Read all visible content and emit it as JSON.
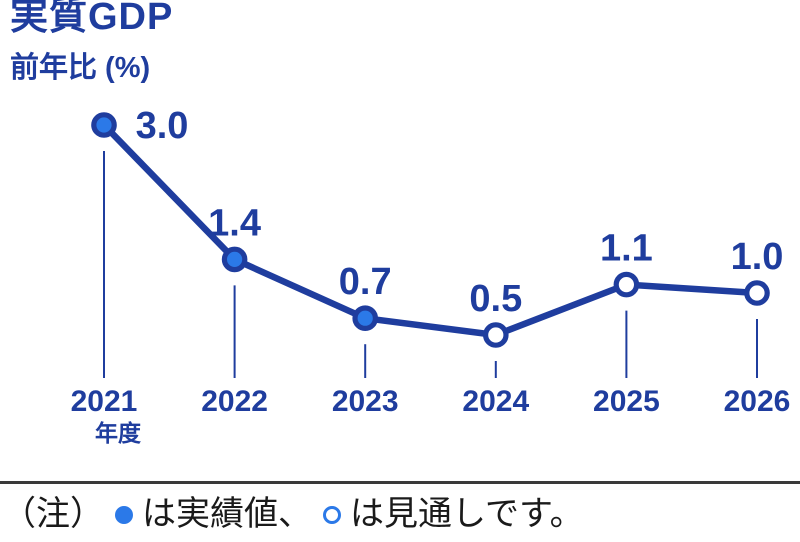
{
  "title": "実質GDP",
  "subtitle": "前年比 (%)",
  "colors": {
    "dark_blue": "#1F3D9E",
    "bright_blue": "#2B79E8",
    "note_text": "#1A1A1A",
    "divider": "#3A3A3A",
    "background": "#FFFFFF"
  },
  "chart_data": {
    "type": "line",
    "title": "実質GDP",
    "ylabel": "前年比 (%)",
    "categories": [
      "2021",
      "2022",
      "2023",
      "2024",
      "2025",
      "2026"
    ],
    "values": [
      3.0,
      1.4,
      0.7,
      0.5,
      1.1,
      1.0
    ],
    "value_labels": [
      "3.0",
      "1.4",
      "0.7",
      "0.5",
      "1.1",
      "1.0"
    ],
    "point_types": [
      "actual",
      "actual",
      "actual",
      "forecast",
      "forecast",
      "forecast"
    ],
    "x_axis_unit": "年度",
    "ylim": [
      0,
      3.5
    ],
    "grid": false,
    "legend": {
      "position": "bottom-note",
      "actual": "実績値",
      "forecast": "見通し"
    }
  },
  "note": {
    "prefix": "（注）",
    "actual_text": "は実績値、",
    "forecast_text": "は見通しです。"
  }
}
